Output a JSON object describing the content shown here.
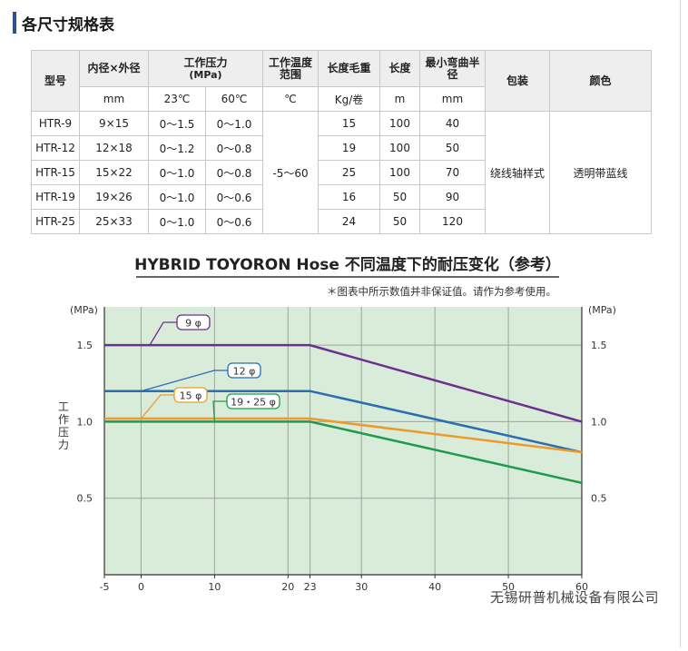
{
  "section": {
    "title": "各尺寸规格表"
  },
  "table": {
    "headers": {
      "model": "型号",
      "diameter": "内径×外径",
      "pressure": "工作压力",
      "pressure_unit": "(MPa)",
      "temp_range": "工作温度范围",
      "length_weight": "长度毛重",
      "length": "长度",
      "min_bend": "最小弯曲半径",
      "package": "包装",
      "color": "颜色"
    },
    "units": {
      "diameter": "mm",
      "p23": "23℃",
      "p60": "60℃",
      "temp": "℃",
      "weight": "Kg/卷",
      "length": "m",
      "bend": "mm"
    },
    "rows": [
      {
        "model": "HTR-9",
        "size": "9×15",
        "p23": "0～1.5",
        "p60": "0～1.0",
        "weight": "15",
        "length": "100",
        "bend": "40"
      },
      {
        "model": "HTR-12",
        "size": "12×18",
        "p23": "0～1.2",
        "p60": "0～0.8",
        "weight": "19",
        "length": "100",
        "bend": "50"
      },
      {
        "model": "HTR-15",
        "size": "15×22",
        "p23": "0～1.0",
        "p60": "0～0.8",
        "weight": "25",
        "length": "100",
        "bend": "70"
      },
      {
        "model": "HTR-19",
        "size": "19×26",
        "p23": "0～1.0",
        "p60": "0～0.6",
        "weight": "16",
        "length": "50",
        "bend": "90"
      },
      {
        "model": "HTR-25",
        "size": "25×33",
        "p23": "0～1.0",
        "p60": "0～0.6",
        "weight": "24",
        "length": "50",
        "bend": "120"
      }
    ],
    "temp_value": "-5～60",
    "package_value": "绕线轴样式",
    "color_value": "透明带蓝线"
  },
  "chart_data": {
    "type": "line",
    "title": "HYBRID TOYORON Hose 不同温度下的耐压变化（参考）",
    "note": "＊图表中所示数值并非保证值。请作为参考使用。",
    "ylabel": "工作压力",
    "yunit": "(MPa)",
    "xlim": [
      -5,
      60
    ],
    "ylim": [
      0,
      1.75
    ],
    "xticks": [
      "-5",
      "0",
      "10",
      "20",
      "23",
      "30",
      "40",
      "50",
      "60"
    ],
    "yticks": [
      "1.5",
      "1.0",
      "0.5"
    ],
    "series": [
      {
        "name": "9 φ",
        "color": "#6b2f8f",
        "x": [
          -5,
          23,
          60
        ],
        "y": [
          1.5,
          1.5,
          1.0
        ]
      },
      {
        "name": "12 φ",
        "color": "#2a6db0",
        "x": [
          -5,
          23,
          60
        ],
        "y": [
          1.2,
          1.2,
          0.8
        ]
      },
      {
        "name": "15 φ",
        "color": "#ee9a2a",
        "x": [
          -5,
          23,
          60
        ],
        "y": [
          1.02,
          1.02,
          0.8
        ]
      },
      {
        "name": "19・25 φ",
        "color": "#1e9a4a",
        "x": [
          -5,
          23,
          60
        ],
        "y": [
          1.0,
          1.0,
          0.6
        ]
      }
    ],
    "colors": {
      "plot_bg": "#d9ecd9",
      "grid": "#9aa59a"
    }
  },
  "watermark": "无锡研普机械设备有限公司"
}
